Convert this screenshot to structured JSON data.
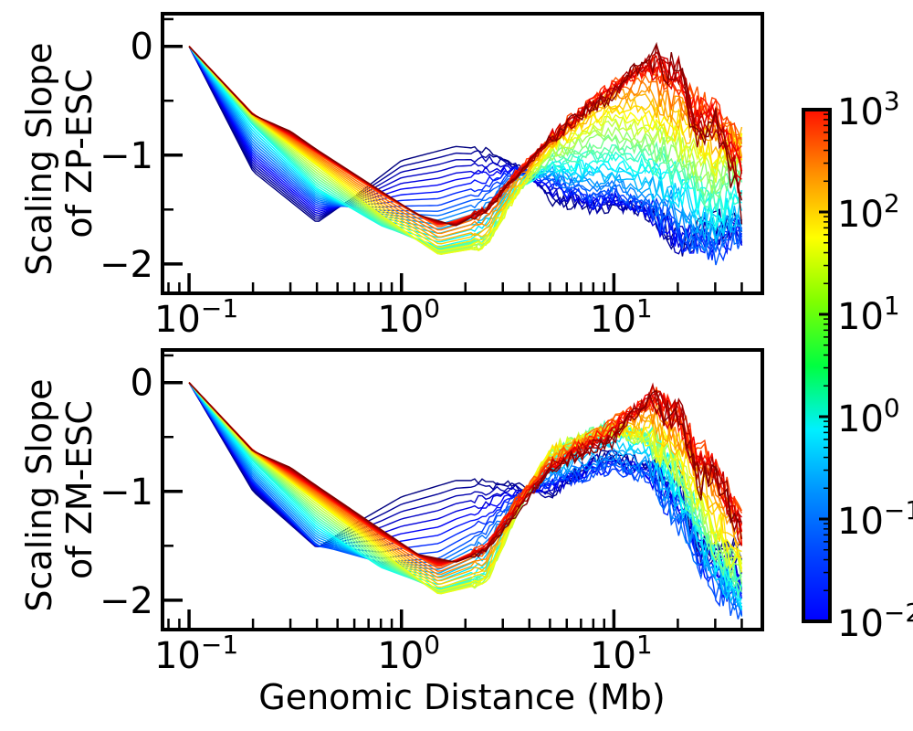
{
  "chart_data": [
    {
      "type": "line",
      "panel": "top",
      "ylabel_lines": [
        "Scaling Slope",
        "of ZP-ESC"
      ],
      "xscale": "log",
      "xlim": [
        0.075,
        50
      ],
      "ylim": [
        -2.27,
        0.3
      ],
      "x_ticks": [
        0.1,
        1,
        10
      ],
      "x_tick_labels": [
        {
          "base": "10",
          "exp": "−1"
        },
        {
          "base": "10",
          "exp": "0"
        },
        {
          "base": "10",
          "exp": "1"
        }
      ],
      "y_ticks": [
        0,
        -1,
        -2
      ],
      "y_tick_labels": [
        "0",
        "−1",
        "−2"
      ],
      "grid": false,
      "series_color_by_time": true,
      "key_series": [
        {
          "t_log10": -2,
          "x": [
            0.1,
            0.2,
            0.4,
            0.6,
            1.0,
            1.8,
            2.6,
            3.5,
            5,
            8,
            10,
            15,
            20,
            30,
            40
          ],
          "y": [
            0,
            -1.15,
            -1.62,
            -1.38,
            -1.05,
            -0.92,
            -0.95,
            -1.1,
            -1.4,
            -1.5,
            -1.45,
            -1.55,
            -1.8,
            -1.6,
            -1.7
          ]
        },
        {
          "t_log10": -1,
          "x": [
            0.1,
            0.2,
            0.4,
            0.8,
            1.5,
            2.5,
            3.5,
            5,
            8,
            10,
            15,
            20,
            30,
            40
          ],
          "y": [
            0,
            -0.95,
            -1.45,
            -1.5,
            -1.5,
            -1.35,
            -1.15,
            -1.2,
            -1.4,
            -1.35,
            -1.5,
            -1.7,
            -1.9,
            -1.7
          ]
        },
        {
          "t_log10": 0,
          "x": [
            0.1,
            0.2,
            0.4,
            0.8,
            1.5,
            2.5,
            3.5,
            5,
            8,
            10,
            15,
            20,
            30,
            40
          ],
          "y": [
            0,
            -0.72,
            -1.3,
            -1.65,
            -1.85,
            -1.75,
            -1.3,
            -1.1,
            -1.05,
            -1.05,
            -1.1,
            -1.2,
            -1.5,
            -1.3
          ]
        },
        {
          "t_log10": 1,
          "x": [
            0.1,
            0.2,
            0.4,
            0.8,
            1.5,
            2.5,
            3.5,
            5,
            8,
            10,
            15,
            20,
            30,
            40
          ],
          "y": [
            0,
            -0.65,
            -1.1,
            -1.55,
            -1.92,
            -1.85,
            -1.35,
            -0.95,
            -0.7,
            -0.65,
            -0.75,
            -0.85,
            -1.1,
            -0.9
          ]
        },
        {
          "t_log10": 2,
          "x": [
            0.1,
            0.2,
            0.4,
            0.8,
            1.5,
            2.5,
            3.5,
            5,
            8,
            10,
            15,
            20,
            30,
            40
          ],
          "y": [
            0,
            -0.62,
            -0.98,
            -1.35,
            -1.65,
            -1.5,
            -1.15,
            -0.85,
            -0.5,
            -0.35,
            -0.2,
            -0.4,
            -0.6,
            -0.9
          ]
        },
        {
          "t_log10": 3,
          "x": [
            0.1,
            0.2,
            0.3,
            0.4,
            0.8,
            1.2,
            1.8,
            2.5,
            3.5,
            5,
            8,
            10,
            12,
            15,
            18,
            20,
            25,
            30,
            40
          ],
          "y": [
            0,
            -0.63,
            -0.78,
            -0.95,
            -1.33,
            -1.55,
            -1.65,
            -1.5,
            -1.2,
            -0.85,
            -0.55,
            -0.45,
            -0.25,
            -0.1,
            -0.2,
            -0.15,
            -0.9,
            -0.7,
            -1.5
          ]
        }
      ]
    },
    {
      "type": "line",
      "panel": "bottom",
      "xlabel": "Genomic Distance (Mb)",
      "ylabel_lines": [
        "Scaling Slope",
        "of ZM-ESC"
      ],
      "xscale": "log",
      "xlim": [
        0.075,
        50
      ],
      "ylim": [
        -2.27,
        0.3
      ],
      "x_ticks": [
        0.1,
        1,
        10
      ],
      "x_tick_labels": [
        {
          "base": "10",
          "exp": "−1"
        },
        {
          "base": "10",
          "exp": "0"
        },
        {
          "base": "10",
          "exp": "1"
        }
      ],
      "y_ticks": [
        0,
        -1,
        -2
      ],
      "y_tick_labels": [
        "0",
        "−1",
        "−2"
      ],
      "grid": false,
      "series_color_by_time": true,
      "key_series": [
        {
          "t_log10": -2,
          "x": [
            0.1,
            0.2,
            0.4,
            0.6,
            1.0,
            1.8,
            2.6,
            3.5,
            5,
            8,
            10,
            15,
            20,
            25
          ],
          "y": [
            0,
            -1.0,
            -1.52,
            -1.3,
            -1.05,
            -0.9,
            -0.9,
            -0.95,
            -1.05,
            -0.7,
            -0.65,
            -0.75,
            -0.9,
            -1.5
          ]
        },
        {
          "t_log10": -1,
          "x": [
            0.1,
            0.2,
            0.4,
            0.8,
            1.5,
            2.5,
            3.5,
            5,
            8,
            10,
            15,
            20,
            30,
            40
          ],
          "y": [
            0,
            -0.9,
            -1.5,
            -1.65,
            -1.6,
            -1.35,
            -1.05,
            -0.9,
            -0.85,
            -0.8,
            -0.9,
            -1.3,
            -1.9,
            -2.1
          ]
        },
        {
          "t_log10": 0,
          "x": [
            0.1,
            0.2,
            0.4,
            0.8,
            1.5,
            2.5,
            3.5,
            5,
            8,
            10,
            15,
            20,
            30,
            40
          ],
          "y": [
            0,
            -0.72,
            -1.3,
            -1.7,
            -1.9,
            -1.75,
            -1.2,
            -0.7,
            -0.45,
            -0.4,
            -0.5,
            -0.9,
            -1.6,
            -1.9
          ]
        },
        {
          "t_log10": 1,
          "x": [
            0.1,
            0.2,
            0.4,
            0.8,
            1.5,
            2.5,
            3.5,
            5,
            8,
            10,
            15,
            20,
            30,
            40
          ],
          "y": [
            0,
            -0.65,
            -1.1,
            -1.55,
            -1.95,
            -1.85,
            -1.2,
            -0.6,
            -0.5,
            -0.45,
            -0.55,
            -0.75,
            -1.4,
            -1.7
          ]
        },
        {
          "t_log10": 2,
          "x": [
            0.1,
            0.2,
            0.4,
            0.8,
            1.5,
            2.5,
            3.5,
            5,
            8,
            10,
            15,
            20,
            30,
            40
          ],
          "y": [
            0,
            -0.62,
            -1.0,
            -1.4,
            -1.7,
            -1.5,
            -1.05,
            -0.75,
            -0.5,
            -0.35,
            -0.15,
            -0.3,
            -0.8,
            -1.3
          ]
        },
        {
          "t_log10": 3,
          "x": [
            0.1,
            0.2,
            0.3,
            0.4,
            0.8,
            1.2,
            1.8,
            2.5,
            3.5,
            5,
            8,
            10,
            12,
            15,
            18,
            20,
            25,
            30,
            40
          ],
          "y": [
            0,
            -0.63,
            -0.78,
            -0.95,
            -1.35,
            -1.58,
            -1.65,
            -1.55,
            -1.2,
            -0.8,
            -0.6,
            -0.55,
            -0.3,
            -0.15,
            -0.3,
            -0.2,
            -0.95,
            -0.8,
            -1.4
          ]
        }
      ]
    }
  ],
  "colorbar": {
    "scale": "log",
    "range_log10": [
      -2,
      3
    ],
    "colormap": "jet",
    "tick_labels": [
      {
        "base": "10",
        "exp": "3"
      },
      {
        "base": "10",
        "exp": "2"
      },
      {
        "base": "10",
        "exp": "1"
      },
      {
        "base": "10",
        "exp": "0"
      },
      {
        "base": "10",
        "exp": "−1"
      },
      {
        "base": "10",
        "exp": "−2"
      }
    ],
    "colors": [
      "#0000ff",
      "#0080ff",
      "#00ffff",
      "#00ff40",
      "#ffff00",
      "#ff8000",
      "#ff0000"
    ]
  }
}
